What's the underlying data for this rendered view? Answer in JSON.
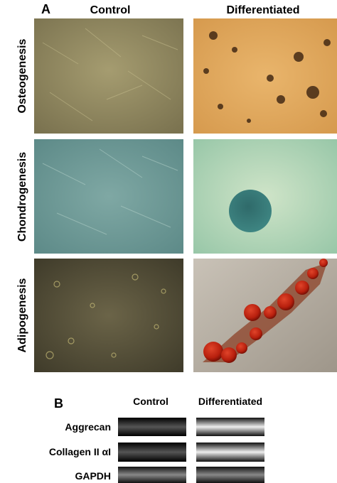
{
  "panel_a": {
    "label": "A",
    "columns": [
      "Control",
      "Differentiated"
    ],
    "rows": [
      "Osteogenesis",
      "Chondrogenesis",
      "Adipogenesis"
    ]
  },
  "panel_b": {
    "label": "B",
    "columns": [
      "Control",
      "Differentiated"
    ],
    "rows": [
      "Aggrecan",
      "Collagen II αI",
      "GAPDH"
    ]
  }
}
